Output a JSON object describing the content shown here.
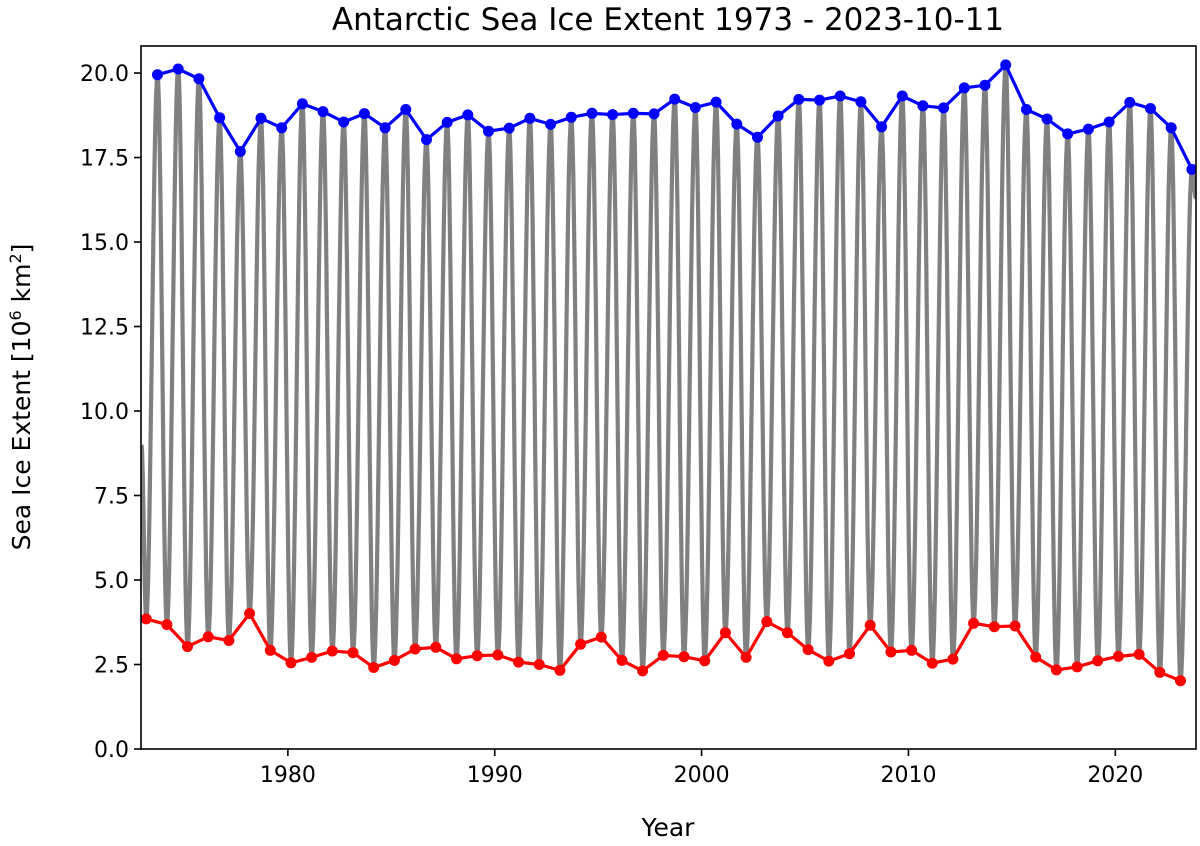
{
  "chart_data": {
    "type": "line",
    "title": "Antarctic Sea Ice Extent 1973 - 2023-10-11",
    "xlabel": "Year",
    "ylabel_main": "Sea Ice Extent [10",
    "ylabel_sup": "6",
    "ylabel_unit": " km",
    "ylabel_unit_sup": "2",
    "ylabel_end": "]",
    "xlim": [
      1972.9,
      2023.9
    ],
    "ylim": [
      0,
      20.8
    ],
    "xticks": [
      1980,
      1990,
      2000,
      2010,
      2020
    ],
    "xtick_labels": [
      "1980",
      "1990",
      "2000",
      "2010",
      "2020"
    ],
    "yticks": [
      0,
      2.5,
      5,
      7.5,
      10,
      12.5,
      15,
      17.5,
      20
    ],
    "ytick_labels": [
      "0.0",
      "2.5",
      "5.0",
      "7.5",
      "10.0",
      "12.5",
      "15.0",
      "17.5",
      "20.0"
    ],
    "grid": false,
    "colors": {
      "daily": "#808080",
      "maxima": "#0000ff",
      "minima": "#ff0000"
    },
    "maxima": {
      "x": [
        1973.7,
        1974.7,
        1975.7,
        1976.7,
        1977.7,
        1978.7,
        1979.7,
        1980.7,
        1981.7,
        1982.7,
        1983.7,
        1984.7,
        1985.7,
        1986.7,
        1987.7,
        1988.7,
        1989.7,
        1990.7,
        1991.7,
        1992.7,
        1993.7,
        1994.7,
        1995.7,
        1996.7,
        1997.7,
        1998.7,
        1999.7,
        2000.7,
        2001.7,
        2002.7,
        2003.7,
        2004.7,
        2005.7,
        2006.7,
        2007.7,
        2008.7,
        2009.7,
        2010.7,
        2011.7,
        2012.7,
        2013.7,
        2014.7,
        2015.7,
        2016.7,
        2017.7,
        2018.7,
        2019.7,
        2020.7,
        2021.7,
        2022.7,
        2023.7
      ],
      "y": [
        19.95,
        20.12,
        19.83,
        18.68,
        17.68,
        18.66,
        18.38,
        19.09,
        18.86,
        18.55,
        18.8,
        18.38,
        18.92,
        18.03,
        18.54,
        18.76,
        18.28,
        18.37,
        18.66,
        18.48,
        18.69,
        18.81,
        18.77,
        18.81,
        18.79,
        19.23,
        18.98,
        19.14,
        18.49,
        18.1,
        18.73,
        19.22,
        19.2,
        19.32,
        19.15,
        18.41,
        19.32,
        19.03,
        18.97,
        19.56,
        19.64,
        20.24,
        18.92,
        18.64,
        18.2,
        18.34,
        18.55,
        19.13,
        18.95,
        18.38,
        17.15
      ]
    },
    "minima": {
      "x": [
        1973.15,
        1974.15,
        1975.15,
        1976.15,
        1977.15,
        1978.15,
        1979.15,
        1980.15,
        1981.15,
        1982.15,
        1983.15,
        1984.15,
        1985.15,
        1986.15,
        1987.15,
        1988.15,
        1989.15,
        1990.15,
        1991.15,
        1992.15,
        1993.15,
        1994.15,
        1995.15,
        1996.15,
        1997.15,
        1998.15,
        1999.15,
        2000.15,
        2001.15,
        2002.15,
        2003.15,
        2004.15,
        2005.15,
        2006.15,
        2007.15,
        2008.15,
        2009.15,
        2010.15,
        2011.15,
        2012.15,
        2013.15,
        2014.15,
        2015.15,
        2016.15,
        2017.15,
        2018.15,
        2019.15,
        2020.15,
        2021.15,
        2022.15,
        2023.15
      ],
      "y": [
        3.85,
        3.68,
        3.03,
        3.32,
        3.21,
        4.01,
        2.92,
        2.55,
        2.71,
        2.9,
        2.85,
        2.41,
        2.62,
        2.96,
        3.01,
        2.67,
        2.76,
        2.78,
        2.57,
        2.5,
        2.33,
        3.1,
        3.31,
        2.62,
        2.31,
        2.77,
        2.73,
        2.61,
        3.44,
        2.71,
        3.77,
        3.44,
        2.94,
        2.6,
        2.82,
        3.66,
        2.87,
        2.92,
        2.54,
        2.66,
        3.72,
        3.62,
        3.64,
        2.72,
        2.34,
        2.43,
        2.61,
        2.74,
        2.8,
        2.27,
        2.02
      ]
    }
  }
}
